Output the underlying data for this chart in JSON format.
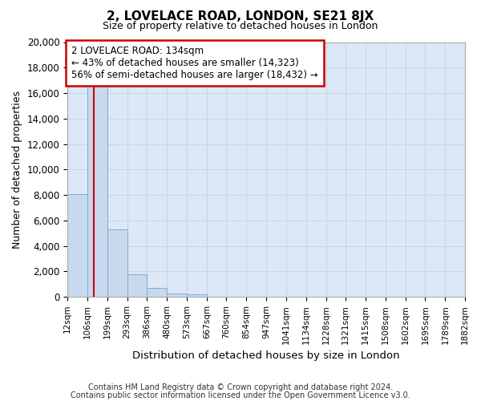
{
  "title": "2, LOVELACE ROAD, LONDON, SE21 8JX",
  "subtitle": "Size of property relative to detached houses in London",
  "xlabel": "Distribution of detached houses by size in London",
  "ylabel": "Number of detached properties",
  "annotation_line1": "2 LOVELACE ROAD: 134sqm",
  "annotation_line2": "← 43% of detached houses are smaller (14,323)",
  "annotation_line3": "56% of semi-detached houses are larger (18,432) →",
  "footer_line1": "Contains HM Land Registry data © Crown copyright and database right 2024.",
  "footer_line2": "Contains public sector information licensed under the Open Government Licence v3.0.",
  "property_size": 134,
  "bar_color": "#c8d9ee",
  "bar_edge_color": "#7aadd4",
  "red_line_color": "#cc0000",
  "annotation_box_color": "#ffffff",
  "annotation_box_edge": "#cc0000",
  "grid_color": "#c8d8ea",
  "background_color": "#dce8f5",
  "bin_edges": [
    12,
    106,
    199,
    293,
    386,
    480,
    573,
    667,
    760,
    854,
    947,
    1041,
    1134,
    1228,
    1321,
    1415,
    1508,
    1602,
    1695,
    1789,
    1882
  ],
  "bin_labels": [
    "12sqm",
    "106sqm",
    "199sqm",
    "293sqm",
    "386sqm",
    "480sqm",
    "573sqm",
    "667sqm",
    "760sqm",
    "854sqm",
    "947sqm",
    "1041sqm",
    "1134sqm",
    "1228sqm",
    "1321sqm",
    "1415sqm",
    "1508sqm",
    "1602sqm",
    "1695sqm",
    "1789sqm",
    "1882sqm"
  ],
  "bar_heights": [
    8100,
    16600,
    5300,
    1750,
    700,
    270,
    200,
    0,
    0,
    0,
    0,
    0,
    0,
    0,
    0,
    0,
    0,
    0,
    0,
    0
  ],
  "ylim": [
    0,
    20000
  ],
  "yticks": [
    0,
    2000,
    4000,
    6000,
    8000,
    10000,
    12000,
    14000,
    16000,
    18000,
    20000
  ]
}
